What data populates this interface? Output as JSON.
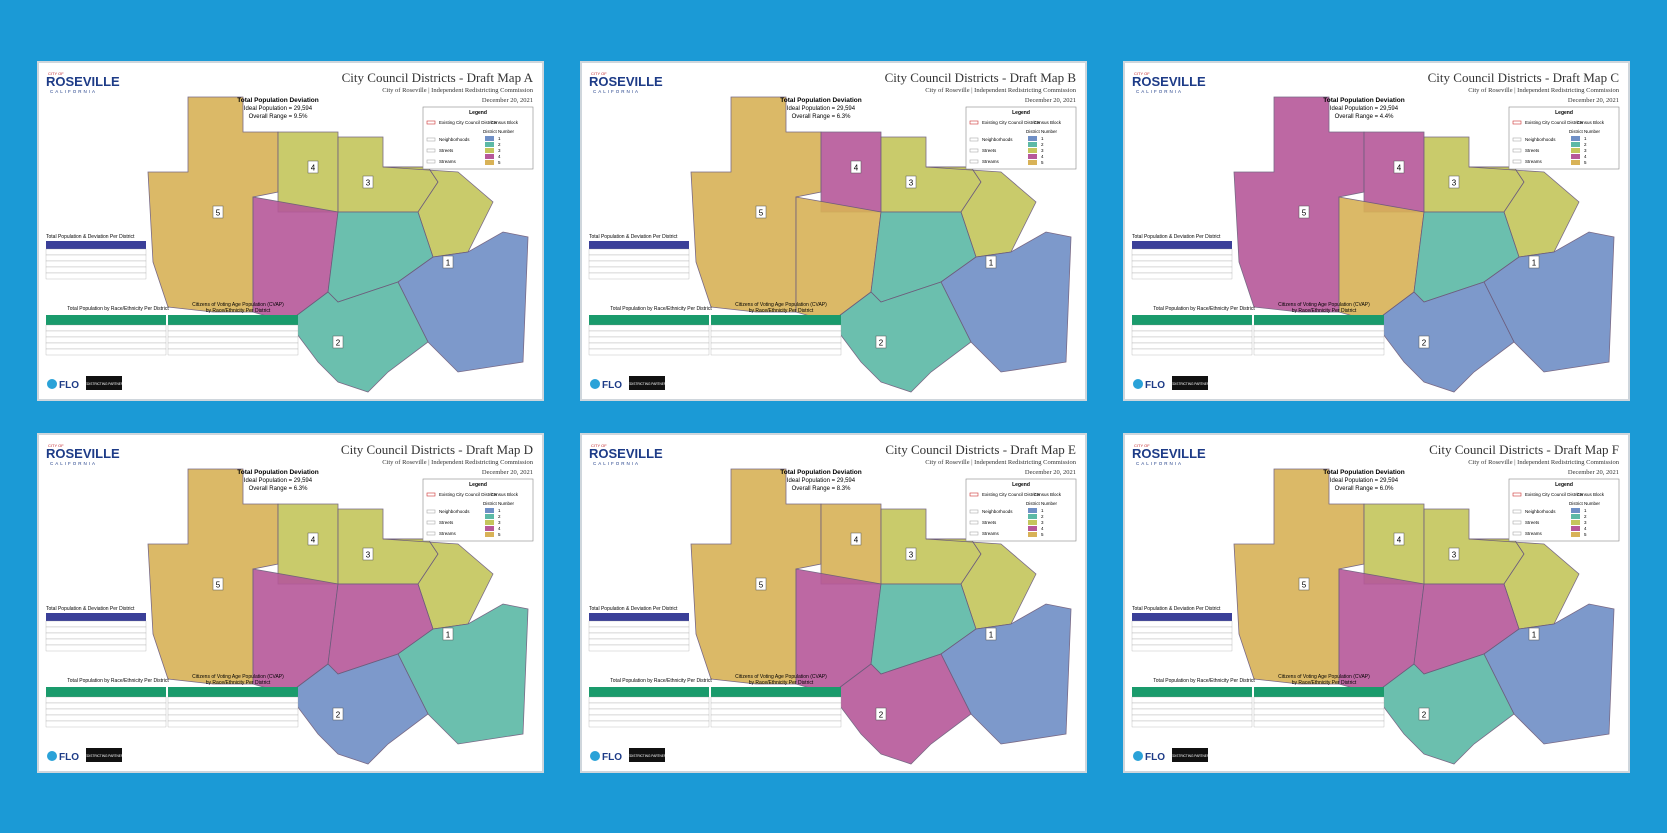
{
  "common": {
    "logo_top": "CITY OF",
    "logo": "ROSEVILLE",
    "logo_sub": "CALIFORNIA",
    "subtitle": "City of Roseville | Independent Redistricting Commission",
    "date": "December 20, 2021",
    "deviation_title": "Total Population Deviation",
    "ideal": "Ideal Population = 29,594",
    "legend_title": "Legend",
    "legend_items": [
      "Existing City Council Districts",
      "Neighborhoods",
      "Streets",
      "Streams"
    ],
    "census": "Census Block",
    "district_number": "District Number",
    "districts": [
      "1",
      "2",
      "3",
      "4",
      "5"
    ],
    "table_title": "Total Population & Deviation Per District",
    "race_title": "Total Population by Race/Ethnicity Per District",
    "cvap_title": "Citizens of Voting Age Population (CVAP)",
    "cvap_sub": "by Race/Ethnicity Per District",
    "flo": "FLO",
    "partners": "REDISTRICTING PARTNERS"
  },
  "maps": [
    {
      "title": "City Council Districts - Draft Map A",
      "range": "Overall Range = 9.5%"
    },
    {
      "title": "City Council Districts - Draft Map B",
      "range": "Overall Range = 6.3%"
    },
    {
      "title": "City Council Districts - Draft Map C",
      "range": "Overall Range = 4.4%"
    },
    {
      "title": "City Council Districts - Draft Map D",
      "range": "Overall Range = 6.3%"
    },
    {
      "title": "City Council Districts - Draft Map E",
      "range": "Overall Range = 8.3%"
    },
    {
      "title": "City Council Districts - Draft Map F",
      "range": "Overall Range = 6.0%"
    }
  ]
}
